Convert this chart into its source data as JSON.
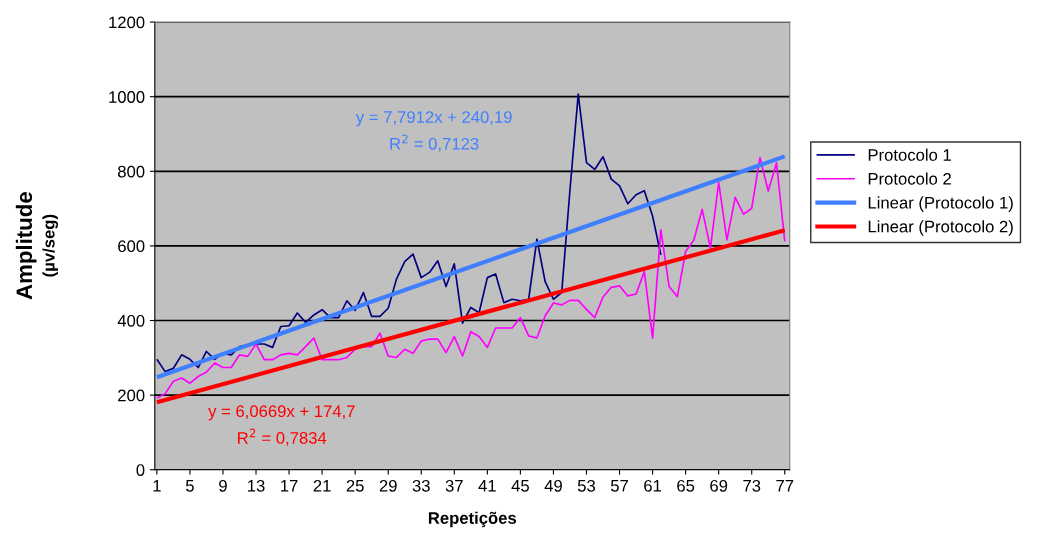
{
  "chart_data": {
    "type": "line",
    "xlabel": "Repetições",
    "ylabel": "Amplitude\n(µv/seg)",
    "x": [
      1,
      2,
      3,
      4,
      5,
      6,
      7,
      8,
      9,
      10,
      11,
      12,
      13,
      14,
      15,
      16,
      17,
      18,
      19,
      20,
      21,
      22,
      23,
      24,
      25,
      26,
      27,
      28,
      29,
      30,
      31,
      32,
      33,
      34,
      35,
      36,
      37,
      38,
      39,
      40,
      41,
      42,
      43,
      44,
      45,
      46,
      47,
      48,
      49,
      50,
      51,
      52,
      53,
      54,
      55,
      56,
      57,
      58,
      59,
      60,
      61,
      62,
      63,
      64,
      65,
      66,
      67,
      68,
      69,
      70,
      71,
      72,
      73,
      74,
      75,
      76,
      77
    ],
    "series": [
      {
        "name": "Protocolo 1",
        "color": "#000080",
        "values": [
          296,
          263,
          272,
          308,
          296,
          274,
          317,
          296,
          312,
          308,
          330,
          335,
          337,
          337,
          328,
          384,
          386,
          420,
          395,
          415,
          429,
          408,
          408,
          453,
          427,
          475,
          411,
          411,
          433,
          511,
          558,
          578,
          515,
          529,
          560,
          491,
          552,
          393,
          435,
          421,
          515,
          525,
          448,
          457,
          453,
          457,
          618,
          504,
          457,
          475,
          750,
          1007,
          823,
          805,
          839,
          779,
          761,
          713,
          737,
          748,
          680,
          576,
          null,
          null,
          null,
          null,
          null,
          null,
          null,
          null,
          null,
          null,
          null,
          null,
          null,
          null,
          null
        ]
      },
      {
        "name": "Protocolo 2",
        "color": "#ff00ff",
        "values": [
          192,
          204,
          237,
          246,
          232,
          250,
          262,
          286,
          274,
          274,
          308,
          304,
          337,
          295,
          295,
          308,
          312,
          308,
          330,
          353,
          295,
          295,
          295,
          301,
          323,
          330,
          330,
          366,
          305,
          301,
          323,
          312,
          345,
          350,
          350,
          314,
          357,
          305,
          370,
          357,
          328,
          380,
          380,
          380,
          408,
          359,
          353,
          413,
          447,
          442,
          454,
          454,
          430,
          408,
          463,
          489,
          493,
          466,
          471,
          531,
          353,
          643,
          491,
          464,
          585,
          616,
          698,
          594,
          770,
          616,
          730,
          685,
          701,
          837,
          747,
          823,
          612
        ]
      },
      {
        "name": "Linear (Protocolo 1)",
        "color": "#3f7fff",
        "values": [
          248,
          null,
          null,
          null,
          null,
          null,
          null,
          null,
          null,
          null,
          null,
          null,
          null,
          null,
          null,
          null,
          null,
          null,
          null,
          null,
          null,
          null,
          null,
          null,
          null,
          null,
          null,
          null,
          null,
          null,
          null,
          null,
          null,
          null,
          null,
          null,
          null,
          null,
          null,
          null,
          null,
          null,
          null,
          null,
          null,
          null,
          null,
          null,
          null,
          null,
          null,
          null,
          null,
          null,
          null,
          null,
          null,
          null,
          null,
          null,
          null,
          null,
          null,
          null,
          null,
          null,
          null,
          null,
          null,
          null,
          null,
          null,
          null,
          null,
          null,
          null,
          840
        ]
      },
      {
        "name": "Linear (Protocolo 2)",
        "color": "#ff0000",
        "values": [
          181,
          null,
          null,
          null,
          null,
          null,
          null,
          null,
          null,
          null,
          null,
          null,
          null,
          null,
          null,
          null,
          null,
          null,
          null,
          null,
          null,
          null,
          null,
          null,
          null,
          null,
          null,
          null,
          null,
          null,
          null,
          null,
          null,
          null,
          null,
          null,
          null,
          null,
          null,
          null,
          null,
          null,
          null,
          null,
          null,
          null,
          null,
          null,
          null,
          null,
          null,
          null,
          null,
          null,
          null,
          null,
          null,
          null,
          null,
          null,
          null,
          null,
          null,
          null,
          null,
          null,
          null,
          null,
          null,
          null,
          null,
          null,
          null,
          null,
          null,
          null,
          642
        ]
      }
    ],
    "xlim": [
      0.75,
      77.6
    ],
    "xticks": [
      1,
      5,
      9,
      13,
      17,
      21,
      25,
      29,
      33,
      37,
      41,
      45,
      49,
      53,
      57,
      61,
      65,
      69,
      73,
      77
    ],
    "ylim": [
      0,
      1200
    ],
    "yticks": [
      0,
      200,
      400,
      600,
      800,
      1000,
      1200
    ],
    "grid": "y",
    "legend": "right",
    "marker": "none",
    "line_style": "solid",
    "annotations": [
      "y = 7,7912x + 240,19",
      "R$^{2}$ = 0,7123",
      "y = 6,0669x + 174,7",
      "R$^{2}$ = 0,7834"
    ]
  }
}
